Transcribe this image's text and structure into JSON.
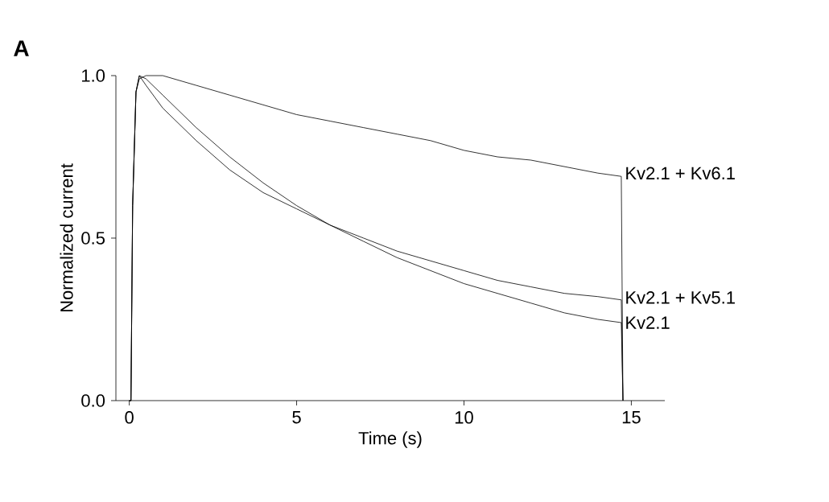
{
  "chart_data": {
    "type": "line",
    "xlabel": "Time (s)",
    "ylabel": "Normalized current",
    "annotations": [
      "A"
    ],
    "xlim": [
      -0.4,
      16
    ],
    "xticks": [
      0,
      5,
      10,
      15
    ],
    "ylim": [
      0,
      1.0
    ],
    "yticks": [
      {
        "value": 0,
        "label": "0.0"
      },
      {
        "value": 0.5,
        "label": "0.5"
      },
      {
        "value": 1.0,
        "label": "1.0"
      }
    ],
    "grid": false,
    "legend": false,
    "marker": "none",
    "line_style": "solid",
    "x": [
      0,
      0.05,
      0.1,
      0.2,
      0.3,
      0.5,
      1,
      2,
      3,
      4,
      5,
      6,
      7,
      8,
      9,
      10,
      11,
      12,
      13,
      14,
      14.7,
      14.75
    ],
    "series": [
      {
        "name": "Kv2.1 + Kv6.1",
        "color": "#000000",
        "values": [
          0,
          0,
          0.6,
          0.95,
          0.99,
          1.0,
          1.0,
          0.97,
          0.94,
          0.91,
          0.88,
          0.86,
          0.84,
          0.82,
          0.8,
          0.77,
          0.75,
          0.74,
          0.72,
          0.7,
          0.69,
          0
        ]
      },
      {
        "name": "Kv2.1 + Kv5.1",
        "color": "#000000",
        "values": [
          0,
          0,
          0.6,
          0.95,
          1.0,
          0.97,
          0.9,
          0.8,
          0.71,
          0.64,
          0.59,
          0.54,
          0.5,
          0.46,
          0.43,
          0.4,
          0.37,
          0.35,
          0.33,
          0.32,
          0.31,
          0
        ]
      },
      {
        "name": "Kv2.1",
        "color": "#000000",
        "values": [
          0,
          0,
          0.6,
          0.95,
          1.0,
          0.99,
          0.94,
          0.84,
          0.75,
          0.67,
          0.6,
          0.54,
          0.49,
          0.44,
          0.4,
          0.36,
          0.33,
          0.3,
          0.27,
          0.25,
          0.24,
          0
        ]
      }
    ]
  }
}
